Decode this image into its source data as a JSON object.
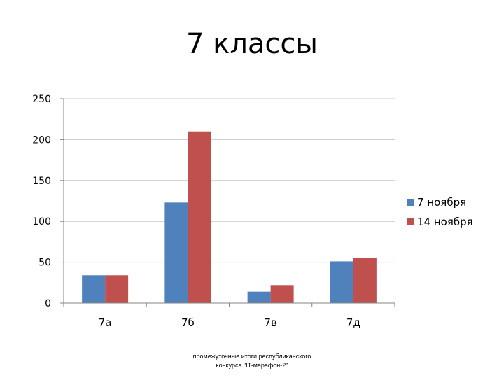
{
  "slide": {
    "title": "7 классы",
    "footer_line1": "промежуточные итоги республиканского",
    "footer_line2": "конкурса \"IT-марафон-2\""
  },
  "chart_data": {
    "type": "bar",
    "categories": [
      "7а",
      "7б",
      "7в",
      "7д"
    ],
    "series": [
      {
        "name": "7 ноября",
        "color": "#4f81bd",
        "values": [
          34,
          123,
          14,
          51
        ]
      },
      {
        "name": "14 ноября",
        "color": "#c0504d",
        "values": [
          34,
          210,
          22,
          55
        ]
      }
    ],
    "ylim": [
      0,
      250
    ],
    "yticks": [
      0,
      50,
      100,
      150,
      200,
      250
    ],
    "grid": true,
    "legend": "right",
    "title": "",
    "xlabel": "",
    "ylabel": ""
  }
}
